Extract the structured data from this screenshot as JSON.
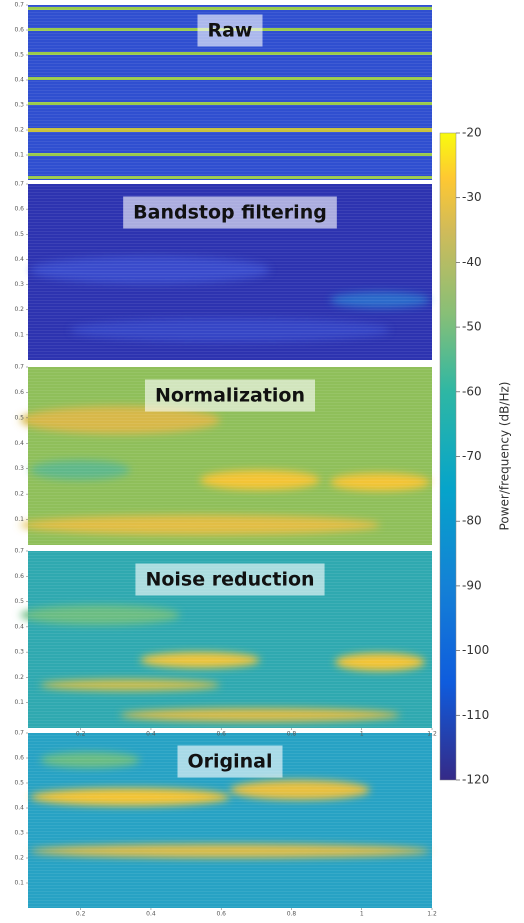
{
  "chart_data": {
    "type": "spectrogram",
    "panels": [
      {
        "title": "Raw"
      },
      {
        "title": "Bandstop filtering"
      },
      {
        "title": "Normalization"
      },
      {
        "title": "Noise reduction"
      },
      {
        "title": "Original"
      }
    ],
    "yticks": [
      0.1,
      0.2,
      0.3,
      0.4,
      0.5,
      0.6,
      0.7
    ],
    "ylim": [
      0,
      0.7
    ],
    "xticks": [
      0.2,
      0.4,
      0.6,
      0.8,
      1,
      1.2
    ],
    "xlim": [
      0.05,
      1.2
    ],
    "colorbar": {
      "label": "Power/frequency (dB/Hz)",
      "lim": [
        -120,
        -20
      ],
      "ticks": [
        -20,
        -30,
        -40,
        -50,
        -60,
        -70,
        -80,
        -90,
        -100,
        -110,
        -120
      ]
    }
  }
}
